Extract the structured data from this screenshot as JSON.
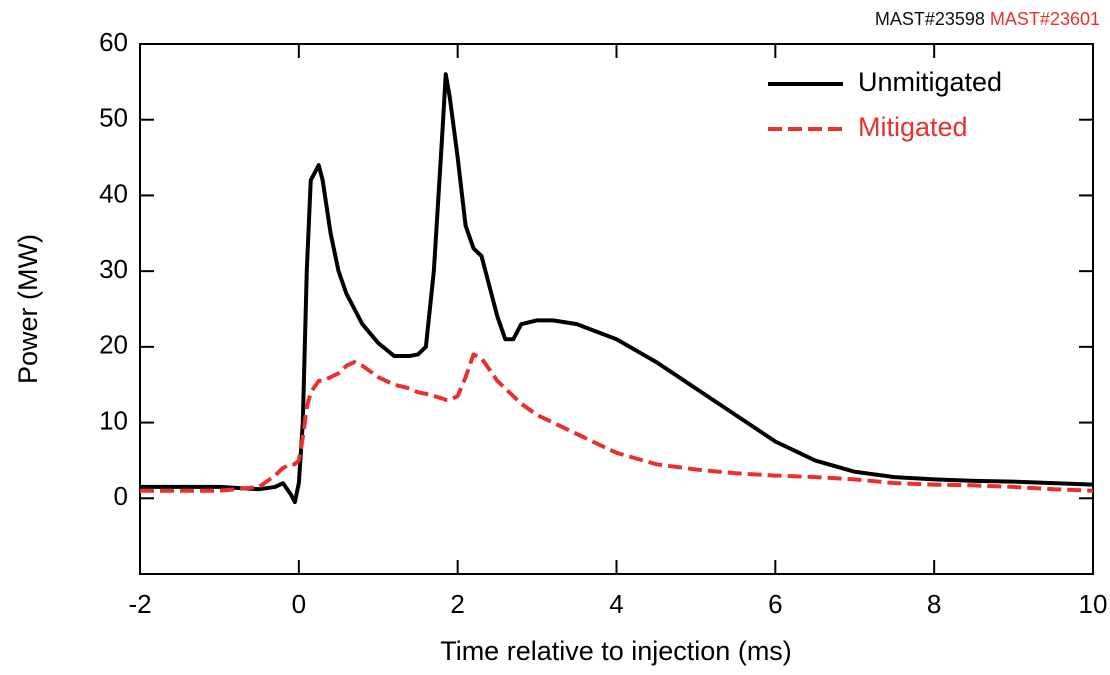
{
  "chart_data": {
    "type": "line",
    "annotations": [
      {
        "text": "MAST#23598",
        "color": "#111111"
      },
      {
        "text": "MAST#23601",
        "color": "#e8302f"
      }
    ],
    "xlabel": "Time relative to injection (ms)",
    "ylabel": "Power (MW)",
    "x": [
      -2,
      -1.5,
      -1,
      -0.5,
      -0.3,
      -0.2,
      -0.1,
      -0.05,
      0,
      0.05,
      0.1,
      0.15,
      0.25,
      0.3,
      0.4,
      0.5,
      0.6,
      0.7,
      0.8,
      1,
      1.2,
      1.4,
      1.5,
      1.6,
      1.7,
      1.8,
      1.85,
      1.9,
      2,
      2.1,
      2.2,
      2.3,
      2.4,
      2.5,
      2.6,
      2.7,
      2.8,
      3,
      3.2,
      3.5,
      4,
      4.5,
      5,
      5.5,
      6,
      6.5,
      7,
      7.5,
      8,
      8.5,
      9,
      9.5,
      10
    ],
    "series": [
      {
        "name": "Unmitigated",
        "color": "#000000",
        "dashed": false,
        "values": [
          1.5,
          1.5,
          1.5,
          1.2,
          1.5,
          2,
          0.5,
          -0.5,
          2,
          10,
          30,
          42,
          44,
          42,
          35,
          30,
          27,
          25,
          23,
          20.5,
          18.8,
          18.8,
          19,
          20,
          30,
          47,
          56,
          53,
          45,
          36,
          33,
          32,
          28,
          24,
          21,
          21,
          23,
          23.5,
          23.5,
          23,
          21,
          18,
          14.5,
          11,
          7.5,
          5,
          3.5,
          2.8,
          2.5,
          2.3,
          2.2,
          2,
          1.8
        ]
      },
      {
        "name": "Mitigated",
        "color": "#e8302f",
        "dashed": true,
        "values": [
          1,
          1,
          1,
          1.5,
          3,
          4,
          4.5,
          4.5,
          5,
          8,
          12,
          14,
          15.5,
          15.5,
          16,
          16.5,
          17.5,
          18,
          17.5,
          16,
          15,
          14.5,
          14,
          13.8,
          13.5,
          13.2,
          13,
          13,
          13.5,
          16,
          19,
          18.5,
          17,
          15.5,
          14.5,
          13.5,
          12.5,
          11,
          10,
          8.5,
          6,
          4.5,
          3.8,
          3.3,
          3,
          2.8,
          2.5,
          2,
          1.8,
          1.7,
          1.5,
          1.2,
          1
        ]
      }
    ],
    "xlim": [
      -2,
      10
    ],
    "ylim": [
      -10,
      60
    ],
    "xticks": [
      -2,
      0,
      2,
      4,
      6,
      8,
      10
    ],
    "yticks": [
      0,
      10,
      20,
      30,
      40,
      50,
      60
    ],
    "legend": "upper right"
  }
}
